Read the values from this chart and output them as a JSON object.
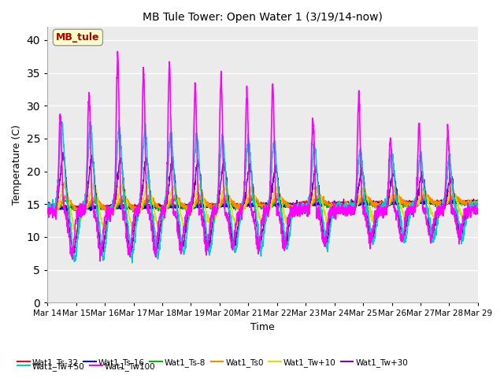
{
  "title": "MB Tule Tower: Open Water 1 (3/19/14-now)",
  "xlabel": "Time",
  "ylabel": "Temperature (C)",
  "ylim": [
    0,
    42
  ],
  "yticks": [
    0,
    5,
    10,
    15,
    20,
    25,
    30,
    35,
    40
  ],
  "xlabels": [
    "Mar 14",
    "Mar 15",
    "Mar 16",
    "Mar 17",
    "Mar 18",
    "Mar 19",
    "Mar 20",
    "Mar 21",
    "Mar 22",
    "Mar 23",
    "Mar 24",
    "Mar 25",
    "Mar 26",
    "Mar 27",
    "Mar 28",
    "Mar 29"
  ],
  "series_colors": {
    "Wat1_Ts-32": "#ff0000",
    "Wat1_Ts-16": "#0000cc",
    "Wat1_Ts-8": "#00bb00",
    "Wat1_Ts0": "#ff8800",
    "Wat1_Tw+10": "#dddd00",
    "Wat1_Tw+30": "#8800aa",
    "Wat1_Tw+50": "#00cccc",
    "Wat1_Tw100": "#ff00ff"
  },
  "annotation_text": "MB_tule",
  "plot_bg_color": "#ebebeb"
}
